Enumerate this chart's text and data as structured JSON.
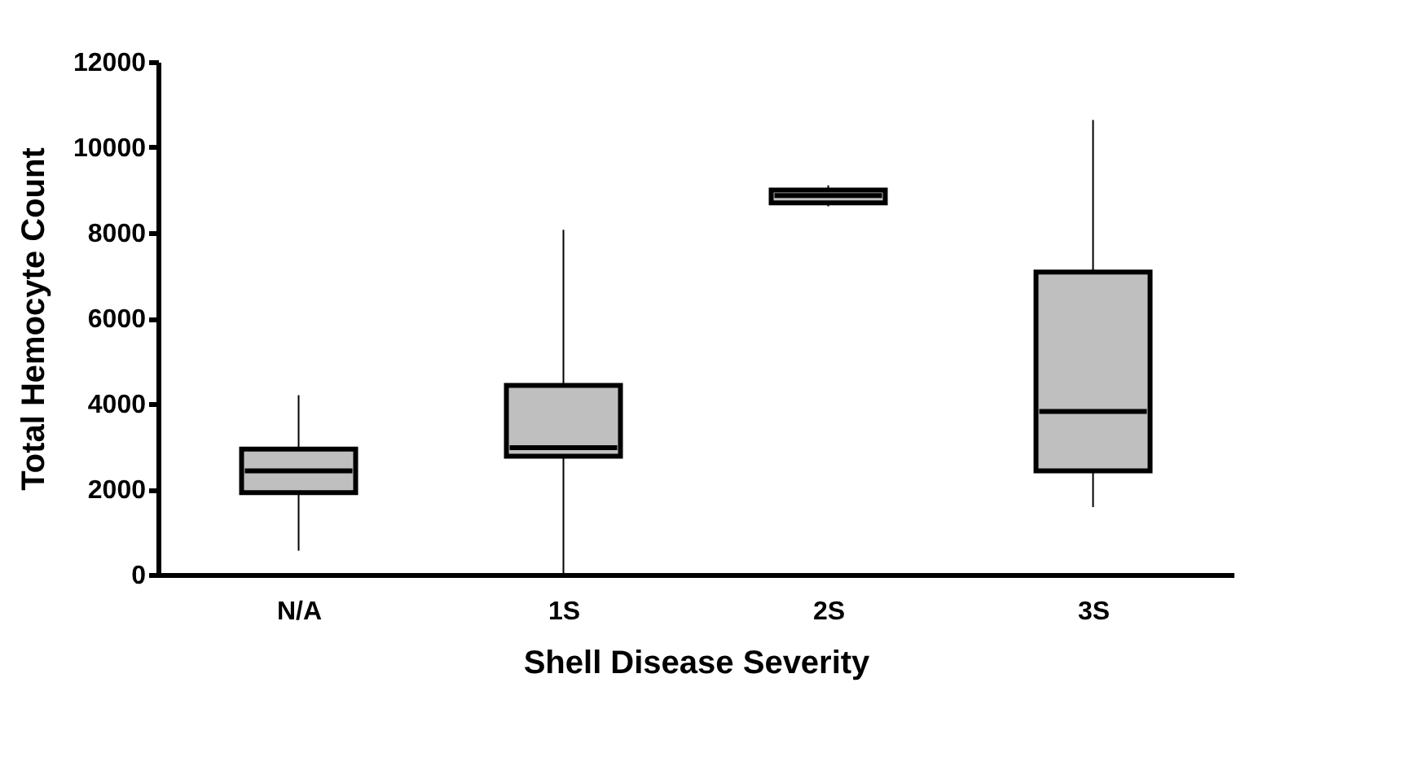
{
  "chart_data": {
    "type": "box",
    "xlabel": "Shell Disease Severity",
    "ylabel": "Total Hemocyte Count",
    "categories": [
      "N/A",
      "1S",
      "2S",
      "3S"
    ],
    "boxes": [
      {
        "low": 560,
        "q1": 1920,
        "median": 2430,
        "q3": 2940,
        "high": 4200
      },
      {
        "low": 0,
        "q1": 2770,
        "median": 2970,
        "q3": 4430,
        "high": 8070
      },
      {
        "low": 8620,
        "q1": 8700,
        "median": 8870,
        "q3": 9000,
        "high": 9110
      },
      {
        "low": 1580,
        "q1": 2430,
        "median": 3820,
        "q3": 7080,
        "high": 10640
      }
    ],
    "color": "#bfbfbf",
    "ylim": [
      0,
      12000
    ],
    "yticks": [
      0,
      2000,
      4000,
      6000,
      8000,
      10000,
      12000
    ],
    "grid": false
  }
}
